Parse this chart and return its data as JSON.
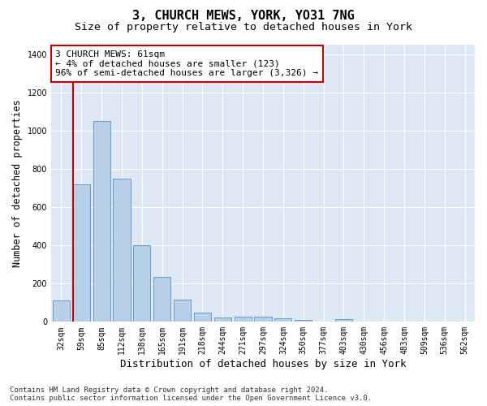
{
  "title": "3, CHURCH MEWS, YORK, YO31 7NG",
  "subtitle": "Size of property relative to detached houses in York",
  "xlabel": "Distribution of detached houses by size in York",
  "ylabel": "Number of detached properties",
  "categories": [
    "32sqm",
    "59sqm",
    "85sqm",
    "112sqm",
    "138sqm",
    "165sqm",
    "191sqm",
    "218sqm",
    "244sqm",
    "271sqm",
    "297sqm",
    "324sqm",
    "350sqm",
    "377sqm",
    "403sqm",
    "430sqm",
    "456sqm",
    "483sqm",
    "509sqm",
    "536sqm",
    "562sqm"
  ],
  "values": [
    110,
    720,
    1050,
    750,
    400,
    235,
    115,
    50,
    22,
    28,
    25,
    18,
    10,
    0,
    15,
    0,
    0,
    0,
    0,
    0,
    0
  ],
  "bar_color": "#b8cfe8",
  "bar_edge_color": "#6699cc",
  "highlight_color": "#cc0000",
  "annotation_text": "3 CHURCH MEWS: 61sqm\n← 4% of detached houses are smaller (123)\n96% of semi-detached houses are larger (3,326) →",
  "annotation_box_color": "white",
  "annotation_box_edge_color": "#cc0000",
  "ylim": [
    0,
    1450
  ],
  "yticks": [
    0,
    200,
    400,
    600,
    800,
    1000,
    1200,
    1400
  ],
  "footer": "Contains HM Land Registry data © Crown copyright and database right 2024.\nContains public sector information licensed under the Open Government Licence v3.0.",
  "bg_color": "#dde8f4",
  "grid_color": "white",
  "title_fontsize": 11,
  "subtitle_fontsize": 9.5,
  "xlabel_fontsize": 9,
  "ylabel_fontsize": 8.5,
  "tick_fontsize": 7,
  "annotation_fontsize": 8,
  "footer_fontsize": 6.5
}
